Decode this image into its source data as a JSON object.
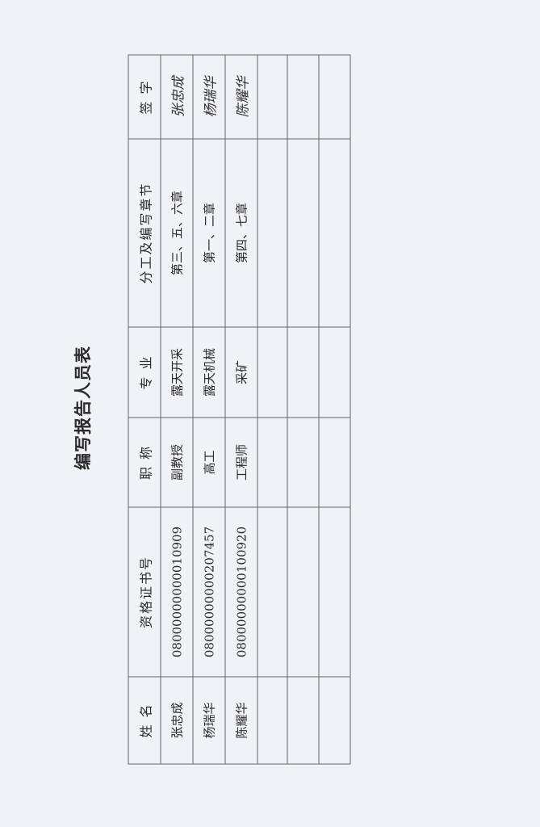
{
  "title": "编写报告人员表",
  "table": {
    "headers": [
      "姓  名",
      "资格证书号",
      "职  称",
      "专  业",
      "分工及编写章节",
      "签  字"
    ],
    "rows": [
      [
        "张忠成",
        "08000000000010909",
        "副教授",
        "露天开采",
        "第三、五、六章",
        "张忠成"
      ],
      [
        "杨瑞华",
        "08000000000207457",
        "高工",
        "露天机械",
        "第一、二章",
        "杨瑞华"
      ],
      [
        "陈耀华",
        "08000000000100920",
        "工程师",
        "采矿",
        "第四、七章",
        "陈耀华"
      ],
      [
        "",
        "",
        "",
        "",
        "",
        ""
      ],
      [
        "",
        "",
        "",
        "",
        "",
        ""
      ],
      [
        "",
        "",
        "",
        "",
        "",
        ""
      ]
    ]
  }
}
